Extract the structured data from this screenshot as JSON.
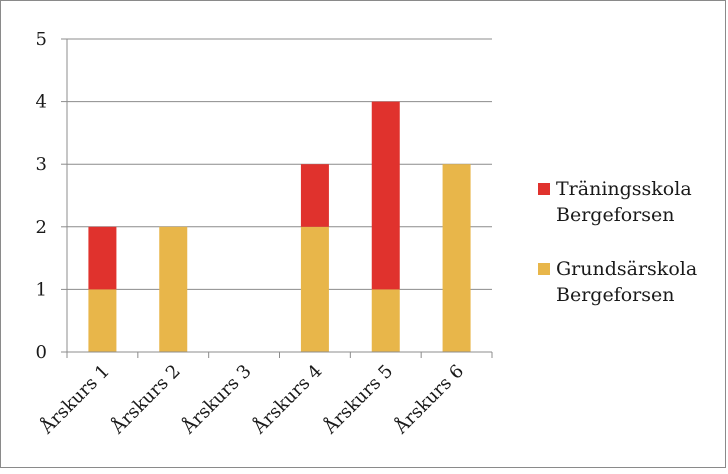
{
  "chart_data": {
    "type": "bar",
    "stacked": true,
    "categories": [
      "Årskurs 1",
      "Årskurs 2",
      "Årskurs 3",
      "Årskurs 4",
      "Årskurs 5",
      "Årskurs 6"
    ],
    "series": [
      {
        "name": "Grundsärskola Bergeforsen",
        "legend_lines": [
          "Grundsärskola",
          "Bergeforsen"
        ],
        "color": "#E8B64A",
        "values": [
          1,
          2,
          0,
          2,
          1,
          3
        ]
      },
      {
        "name": "Träningsskola Bergeforsen",
        "legend_lines": [
          "Träningsskola",
          "Bergeforsen"
        ],
        "color": "#E0322D",
        "values": [
          1,
          0,
          0,
          1,
          3,
          0
        ]
      }
    ],
    "title": "",
    "xlabel": "",
    "ylabel": "",
    "ylim": [
      0,
      5
    ],
    "yticks": [
      0,
      1,
      2,
      3,
      4,
      5
    ],
    "grid": true,
    "legend_position": "right",
    "legend_order": [
      "Träningsskola Bergeforsen",
      "Grundsärskola Bergeforsen"
    ]
  }
}
